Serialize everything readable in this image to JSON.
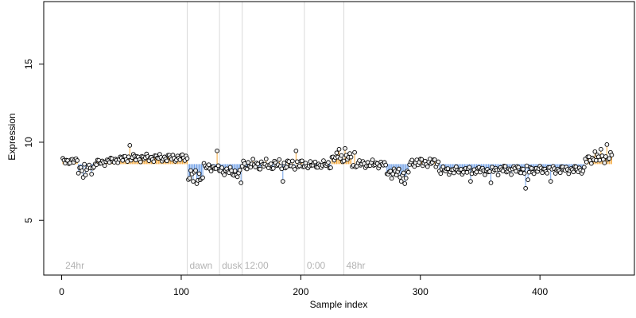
{
  "chart_data": {
    "type": "scatter",
    "title": "",
    "xlabel": "Sample index",
    "ylabel": "Expression",
    "xlim": [
      -15,
      479
    ],
    "ylim": [
      1.5,
      19
    ],
    "baseline": 8.6,
    "xticks": [
      0,
      100,
      200,
      300,
      400
    ],
    "yticks": [
      5,
      10,
      15
    ],
    "grid": false,
    "legend": "none",
    "colors": {
      "above": "#f5a83a",
      "below": "#6f9fe6",
      "point_fill": "#f2f2f2",
      "point_stroke": "#000000",
      "separator": "#d9d9d9",
      "phase_label": "#b3b3b3"
    },
    "phase_markers": [
      {
        "x": 1,
        "label": "24hr"
      },
      {
        "x": 105,
        "label": "dawn"
      },
      {
        "x": 132,
        "label": "dusk"
      },
      {
        "x": 151,
        "label": "12:00"
      },
      {
        "x": 203,
        "label": "0:00"
      },
      {
        "x": 236,
        "label": "48hr"
      }
    ],
    "segments": [
      {
        "start": 1,
        "end": 13,
        "base": 8.8,
        "amp": 0.25,
        "trend": 0
      },
      {
        "start": 14,
        "end": 27,
        "base": 8.35,
        "amp": 0.4,
        "trend": 0
      },
      {
        "start": 28,
        "end": 52,
        "base": 8.8,
        "amp": 0.25,
        "trend": 0.3
      },
      {
        "start": 53,
        "end": 105,
        "base": 9.0,
        "amp": 0.3,
        "trend": 0
      },
      {
        "start": 106,
        "end": 118,
        "base": 7.9,
        "amp": 0.45,
        "trend": 0
      },
      {
        "start": 119,
        "end": 131,
        "base": 8.4,
        "amp": 0.3,
        "trend": 0
      },
      {
        "start": 132,
        "end": 150,
        "base": 8.1,
        "amp": 0.35,
        "trend": -0.3
      },
      {
        "start": 151,
        "end": 202,
        "base": 8.55,
        "amp": 0.4,
        "trend": 0
      },
      {
        "start": 203,
        "end": 225,
        "base": 8.55,
        "amp": 0.3,
        "trend": 0
      },
      {
        "start": 226,
        "end": 242,
        "base": 9.0,
        "amp": 0.35,
        "trend": 0
      },
      {
        "start": 243,
        "end": 270,
        "base": 8.6,
        "amp": 0.3,
        "trend": 0
      },
      {
        "start": 271,
        "end": 290,
        "base": 8.0,
        "amp": 0.45,
        "trend": -0.3
      },
      {
        "start": 291,
        "end": 315,
        "base": 8.7,
        "amp": 0.35,
        "trend": 0
      },
      {
        "start": 316,
        "end": 360,
        "base": 8.2,
        "amp": 0.3,
        "trend": 0
      },
      {
        "start": 361,
        "end": 395,
        "base": 8.25,
        "amp": 0.35,
        "trend": 0
      },
      {
        "start": 396,
        "end": 437,
        "base": 8.25,
        "amp": 0.3,
        "trend": 0
      },
      {
        "start": 438,
        "end": 460,
        "base": 8.95,
        "amp": 0.35,
        "trend": 0.2
      }
    ],
    "special_points": [
      {
        "x": 18,
        "y": 7.75
      },
      {
        "x": 20,
        "y": 7.9
      },
      {
        "x": 57,
        "y": 9.8
      },
      {
        "x": 110,
        "y": 7.5
      },
      {
        "x": 113,
        "y": 7.35
      },
      {
        "x": 116,
        "y": 7.6
      },
      {
        "x": 130,
        "y": 9.45
      },
      {
        "x": 150,
        "y": 7.4
      },
      {
        "x": 185,
        "y": 7.5
      },
      {
        "x": 196,
        "y": 9.45
      },
      {
        "x": 232,
        "y": 9.55
      },
      {
        "x": 237,
        "y": 9.6
      },
      {
        "x": 245,
        "y": 9.35
      },
      {
        "x": 284,
        "y": 7.5
      },
      {
        "x": 287,
        "y": 7.35
      },
      {
        "x": 288,
        "y": 7.7
      },
      {
        "x": 342,
        "y": 7.5
      },
      {
        "x": 359,
        "y": 7.4
      },
      {
        "x": 388,
        "y": 7.05
      },
      {
        "x": 390,
        "y": 7.6
      },
      {
        "x": 409,
        "y": 7.5
      },
      {
        "x": 446,
        "y": 9.4
      },
      {
        "x": 451,
        "y": 9.55
      },
      {
        "x": 456,
        "y": 9.85
      }
    ]
  }
}
